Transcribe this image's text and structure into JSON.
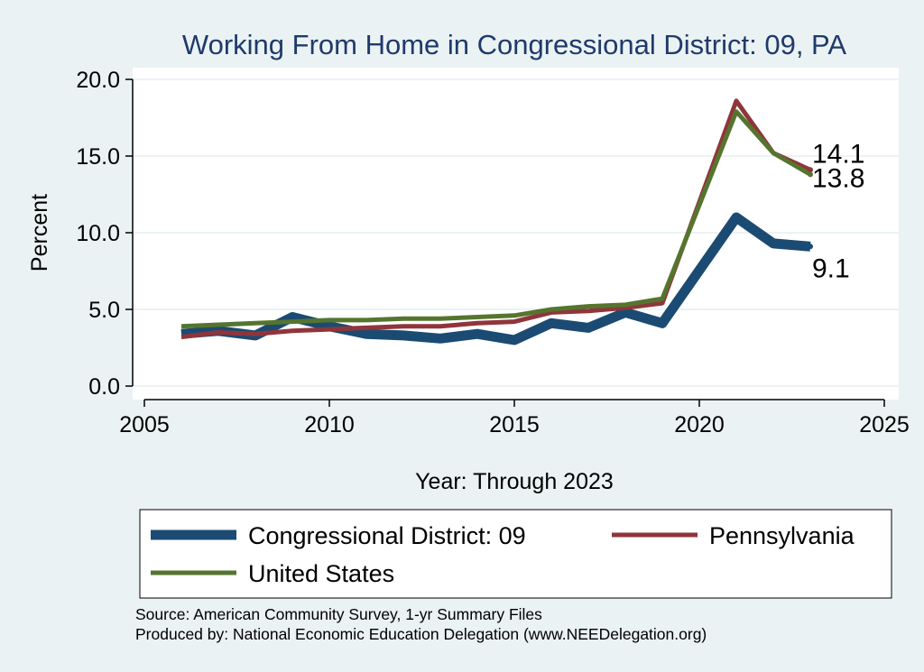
{
  "chart_data": {
    "type": "line",
    "title": "Working From Home in Congressional District: 09, PA",
    "xlabel": "Year: Through 2023",
    "ylabel": "Percent",
    "xlim": [
      2005,
      2025
    ],
    "ylim": [
      0,
      20
    ],
    "x_ticks": [
      2005,
      2010,
      2015,
      2020,
      2025
    ],
    "y_ticks": [
      0,
      5,
      10,
      15,
      20
    ],
    "y_tick_labels": [
      "0.0",
      "5.0",
      "10.0",
      "15.0",
      "20.0"
    ],
    "grid": "horizontal",
    "legend_position": "bottom",
    "x": [
      2006,
      2007,
      2008,
      2009,
      2010,
      2011,
      2012,
      2013,
      2014,
      2015,
      2016,
      2017,
      2018,
      2019,
      2021,
      2022,
      2023
    ],
    "series": [
      {
        "name": "Congressional District: 09",
        "color": "#1b4b72",
        "values": [
          3.4,
          3.6,
          3.3,
          4.5,
          3.9,
          3.4,
          3.3,
          3.1,
          3.4,
          3.0,
          4.1,
          3.8,
          4.8,
          4.1,
          11.0,
          9.3,
          9.1
        ],
        "end_label": "9.1"
      },
      {
        "name": "Pennsylvania",
        "color": "#90353b",
        "values": [
          3.2,
          3.5,
          3.4,
          3.6,
          3.7,
          3.8,
          3.9,
          3.9,
          4.1,
          4.2,
          4.8,
          4.9,
          5.1,
          5.4,
          18.6,
          15.2,
          14.1
        ],
        "end_label": "14.1"
      },
      {
        "name": "United States",
        "color": "#55752f",
        "values": [
          3.9,
          4.0,
          4.1,
          4.2,
          4.3,
          4.3,
          4.4,
          4.4,
          4.5,
          4.6,
          5.0,
          5.2,
          5.3,
          5.7,
          17.9,
          15.2,
          13.8
        ],
        "end_label": "13.8"
      }
    ],
    "notes": [
      "Source: American Community Survey, 1-yr Summary Files",
      "Produced by: National Economic Education Delegation (www.NEEDelegation.org)"
    ]
  }
}
